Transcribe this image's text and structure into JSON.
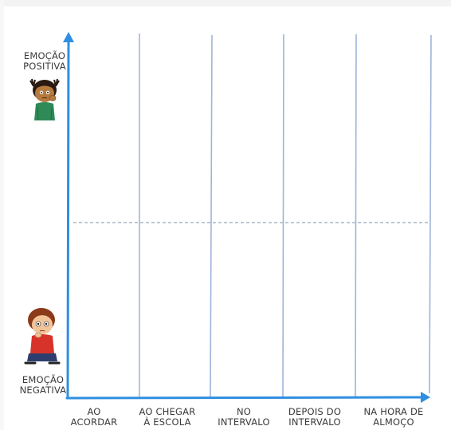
{
  "y_axis": {
    "top_label": [
      "EMOÇÃO",
      "POSITIVA"
    ],
    "bottom_label": [
      "EMOÇÃO",
      "NEGATIVA"
    ]
  },
  "x_axis": {
    "categories": [
      [
        "AO",
        "ACORDAR"
      ],
      [
        "AO CHEGAR",
        "À ESCOLA"
      ],
      [
        "NO",
        "INTERVALO"
      ],
      [
        "DEPOIS DO",
        "INTERVALO"
      ],
      [
        "NA HORA DE",
        "ALMOÇO"
      ]
    ]
  },
  "colors": {
    "axis": "#2f8fe0",
    "column_line": "#9fb3da",
    "midline": "#a9b6c8",
    "text": "#3a3a3a"
  },
  "illustrations": {
    "top": "girl-thinking-icon",
    "bottom": "boy-sitting-icon"
  }
}
